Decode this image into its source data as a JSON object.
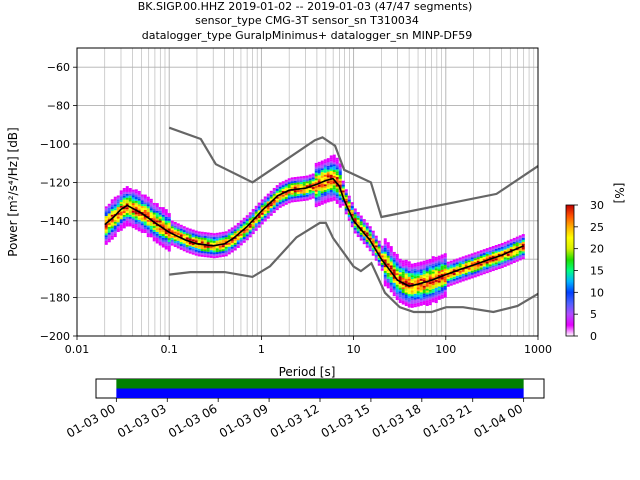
{
  "header": {
    "line1": "BK.SIGP.00.HHZ   2019-01-02 -- 2019-01-03  (47/47 segments)",
    "line2": "sensor_type CMG-3T sensor_sn T310034",
    "line3": "datalogger_type GuralpMinimus+ datalogger_sn MINP-DF59"
  },
  "chart_data": [
    {
      "type": "heatmap",
      "subtype": "probabilistic-power-spectral-density",
      "xlabel": "Period [s]",
      "ylabel": "Power [m²/s⁴/Hz] [dB]",
      "x_scale": "log",
      "xlim": [
        0.01,
        1000
      ],
      "ylim": [
        -200,
        -50
      ],
      "x_ticks": [
        0.01,
        0.1,
        1,
        10,
        100,
        1000
      ],
      "x_tick_labels": [
        "0.01",
        "0.1",
        "1",
        "10",
        "100",
        "1000"
      ],
      "y_ticks": [
        -200,
        -180,
        -160,
        -140,
        -120,
        -100,
        -80,
        -60
      ],
      "y_tick_labels": [
        "−200",
        "−180",
        "−160",
        "−140",
        "−120",
        "−100",
        "−80",
        "−60"
      ],
      "grid": true,
      "colorbar": {
        "label": "[%]",
        "range": [
          0,
          30
        ],
        "ticks": [
          0,
          5,
          10,
          15,
          20,
          25,
          30
        ],
        "tick_labels": [
          "0",
          "5",
          "10",
          "15",
          "20",
          "25",
          "30"
        ],
        "colormap": [
          "#ffffff",
          "#e600ff",
          "#b04cff",
          "#4d60ff",
          "#0040ff",
          "#00b4ff",
          "#00ff80",
          "#20e000",
          "#d8f000",
          "#ffff00",
          "#ffb000",
          "#ff5000",
          "#c00000"
        ]
      },
      "series": [
        {
          "name": "",
          "role": "mean",
          "color": "#000000",
          "x": [
            0.02,
            0.025,
            0.03,
            0.035,
            0.05,
            0.07,
            0.1,
            0.15,
            0.2,
            0.3,
            0.4,
            0.5,
            0.7,
            1,
            1.5,
            2,
            3,
            4,
            5,
            6,
            7,
            8,
            10,
            15,
            20,
            30,
            40,
            50,
            70,
            100,
            150,
            200,
            300,
            400,
            500,
            700
          ],
          "y": [
            -142,
            -138,
            -134,
            -132,
            -136,
            -141,
            -146,
            -150,
            -152,
            -153,
            -152,
            -149,
            -143,
            -135,
            -127,
            -124,
            -123,
            -121,
            -119,
            -118,
            -122,
            -130,
            -140,
            -150,
            -160,
            -171,
            -174,
            -173,
            -171,
            -168,
            -165,
            -163,
            -160,
            -158,
            -156,
            -153
          ]
        },
        {
          "name": "",
          "role": "noise-model-high",
          "color": "#666666",
          "x": [
            0.1,
            0.22,
            0.32,
            0.8,
            3.8,
            4.6,
            6.3,
            7.9,
            15.4,
            20,
            354.8,
            1000
          ],
          "y": [
            -91.5,
            -97.4,
            -110.5,
            -120,
            -98,
            -96.5,
            -101,
            -113.5,
            -120,
            -138,
            -126,
            -111.5
          ]
        },
        {
          "name": "",
          "role": "noise-model-low",
          "color": "#666666",
          "x": [
            0.1,
            0.17,
            0.4,
            0.8,
            1.24,
            2.4,
            4.3,
            5,
            6,
            10,
            12,
            15.6,
            21.9,
            31.6,
            45,
            70,
            101,
            154,
            328,
            600,
            1000
          ],
          "y": [
            -168,
            -166.7,
            -166.7,
            -169.2,
            -163.7,
            -148.6,
            -141.1,
            -141.1,
            -149,
            -163.8,
            -166.2,
            -162.1,
            -177.5,
            -185,
            -187.5,
            -187.5,
            -185,
            -185,
            -187.5,
            -184.4,
            -178
          ]
        }
      ]
    },
    {
      "type": "timeline",
      "role": "data-availability",
      "tick_labels": [
        "01-03 00",
        "01-03 03",
        "01-03 06",
        "01-03 09",
        "01-03 12",
        "01-03 15",
        "01-03 18",
        "01-03 21",
        "01-04 00"
      ],
      "tick_hours": [
        0,
        3,
        6,
        9,
        12,
        15,
        18,
        21,
        24
      ],
      "range_hours": [
        -1.2,
        25.2
      ],
      "bars": [
        {
          "role": "used",
          "color": "#008000",
          "start_hours": 0,
          "end_hours": 24
        },
        {
          "role": "available",
          "color": "#0000ff",
          "start_hours": 0,
          "end_hours": 24
        }
      ]
    }
  ]
}
